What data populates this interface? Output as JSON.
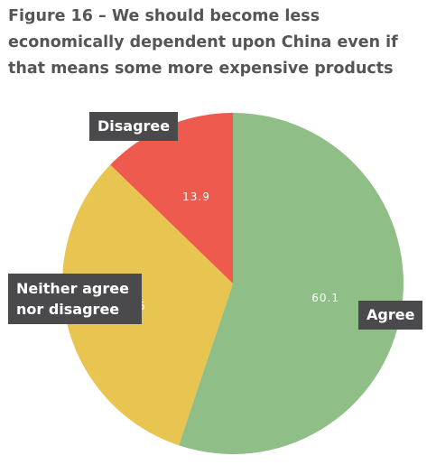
{
  "title": "Figure 16 – We should become less economically dependent upon China even if that means some more expensive products",
  "chart_data": {
    "type": "pie",
    "title": "Figure 16 – We should become less economically dependent upon China even if that means some more expensive products",
    "slices": [
      {
        "label": "Agree",
        "value": 60.1,
        "display": "60.1",
        "color": "#8fbf87"
      },
      {
        "label": "Neither agree nor disagree",
        "value": 35,
        "display": "35",
        "color": "#e8c451"
      },
      {
        "label": "Disagree",
        "value": 13.9,
        "display": "13.9",
        "color": "#ee5b4e"
      }
    ],
    "start": "12 o'clock",
    "direction": "clockwise",
    "legend": "none (category labels in dark boxes beside slices)"
  }
}
